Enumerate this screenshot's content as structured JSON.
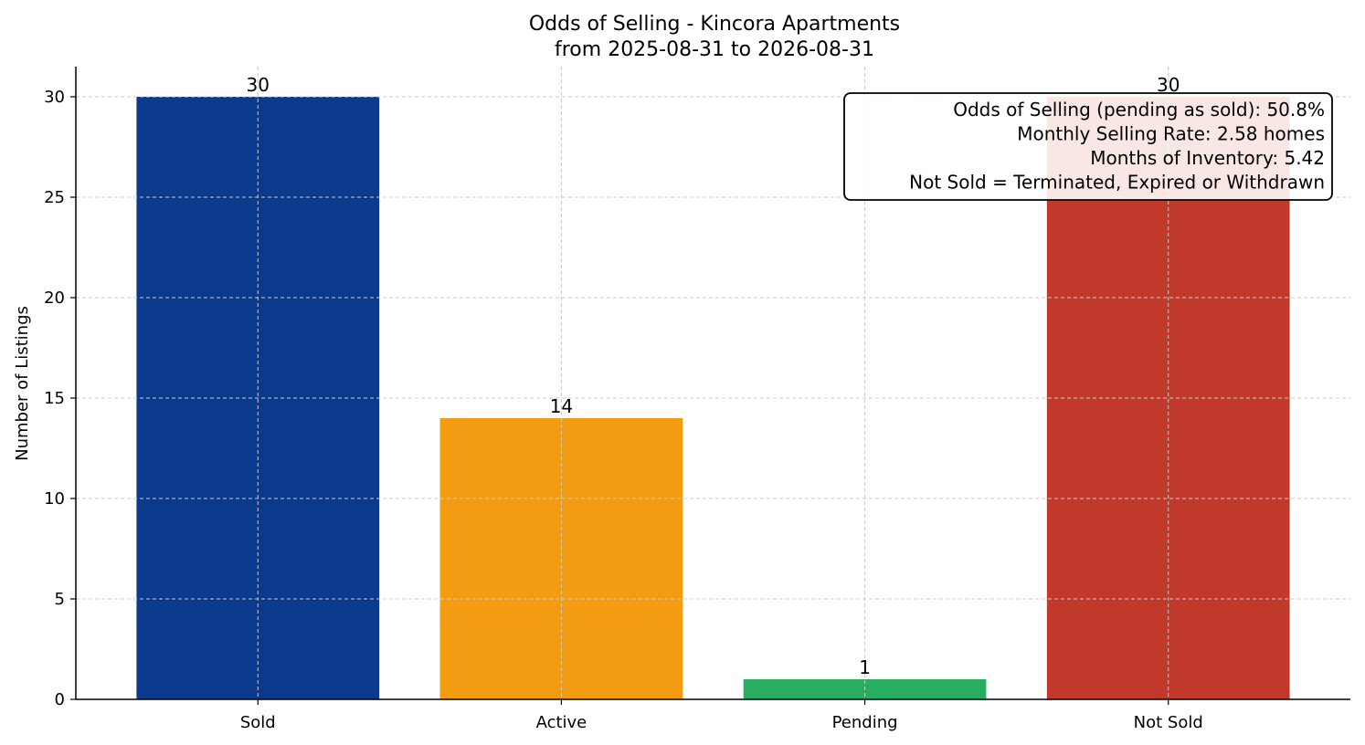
{
  "chart_data": {
    "type": "bar",
    "title": "Odds of Selling - Kincora Apartments",
    "subtitle": "from 2025-08-31 to 2026-08-31",
    "xlabel": "",
    "ylabel": "Number of Listings",
    "categories": [
      "Sold",
      "Active",
      "Pending",
      "Not Sold"
    ],
    "values": [
      30,
      14,
      1,
      30
    ],
    "colors": [
      "#0b3a8c",
      "#f39c12",
      "#27ae60",
      "#c0392b"
    ],
    "ylim": [
      0,
      31.5
    ],
    "yticks": [
      0,
      5,
      10,
      15,
      20,
      25,
      30
    ],
    "grid": true,
    "annotation_box": {
      "position": "top-right",
      "lines": [
        "Odds of Selling (pending as sold): 50.8%",
        "Monthly Selling Rate: 2.58 homes",
        "Months of Inventory: 5.42",
        "Not Sold = Terminated, Expired or Withdrawn"
      ]
    }
  }
}
